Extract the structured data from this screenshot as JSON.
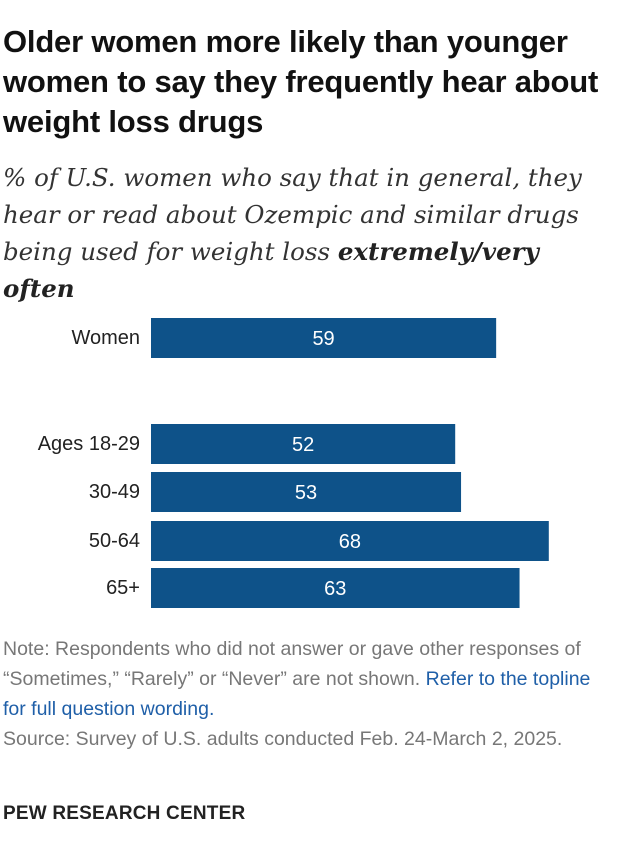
{
  "title": "Older women more likely than younger women to say they frequently hear about weight loss drugs",
  "subtitle": {
    "plain": "% of U.S. women who say that in general, they hear or read about Ozempic and similar drugs being used for weight loss",
    "emphasis": "extremely/very often"
  },
  "chart_data": {
    "type": "bar",
    "orientation": "horizontal",
    "categories": [
      "Women",
      "Ages 18-29",
      "30-49",
      "50-64",
      "65+"
    ],
    "values": [
      59,
      52,
      53,
      68,
      63
    ],
    "xlim": [
      0,
      100
    ],
    "grid": false,
    "legend": "none",
    "bar_color": "#0e5289",
    "label_color": "#ffffff"
  },
  "note": {
    "text": "Note: Respondents who did not answer or gave other responses of “Sometimes,” “Rarely” or “Never” are not shown.",
    "link_text": "Refer to the topline for full question wording."
  },
  "source": "Source: Survey of U.S. adults conducted Feb. 24-March 2, 2025.",
  "footer": "PEW RESEARCH CENTER"
}
